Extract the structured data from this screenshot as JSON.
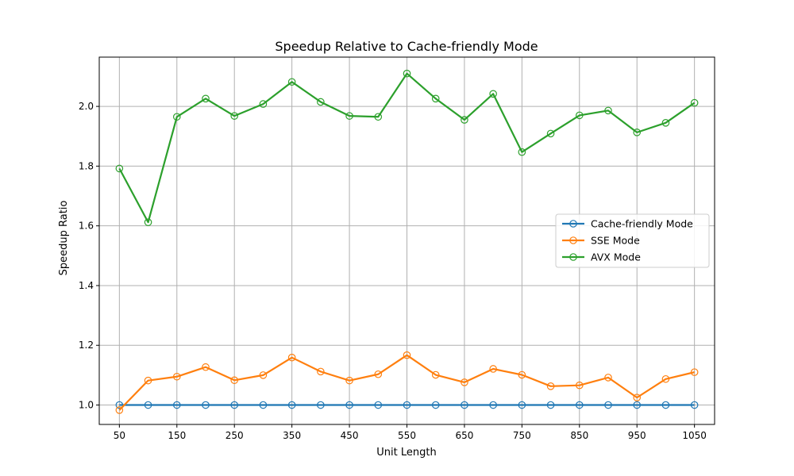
{
  "chart_data": {
    "type": "line",
    "title": "Speedup Relative to Cache-friendly Mode",
    "xlabel": "Unit Length",
    "ylabel": "Speedup Ratio",
    "x": [
      50,
      100,
      150,
      200,
      250,
      300,
      350,
      400,
      450,
      500,
      550,
      600,
      650,
      700,
      750,
      800,
      850,
      900,
      950,
      1000,
      1050
    ],
    "xticks": [
      50,
      150,
      250,
      350,
      450,
      550,
      650,
      750,
      850,
      950,
      1050
    ],
    "yticks": [
      1.0,
      1.2,
      1.4,
      1.6,
      1.8,
      2.0
    ],
    "xlim": [
      15,
      1085
    ],
    "ylim": [
      0.935,
      2.165
    ],
    "grid": true,
    "legend_position": "center-right",
    "series": [
      {
        "name": "Cache-friendly Mode",
        "color": "#1f77b4",
        "values": [
          1.0,
          1.0,
          1.0,
          1.0,
          1.0,
          1.0,
          1.0,
          1.0,
          1.0,
          1.0,
          1.0,
          1.0,
          1.0,
          1.0,
          1.0,
          1.0,
          1.0,
          1.0,
          1.0,
          1.0,
          1.0
        ]
      },
      {
        "name": "SSE Mode",
        "color": "#ff7f0e",
        "values": [
          0.983,
          1.082,
          1.095,
          1.127,
          1.083,
          1.1,
          1.159,
          1.112,
          1.082,
          1.103,
          1.167,
          1.101,
          1.076,
          1.121,
          1.101,
          1.063,
          1.066,
          1.092,
          1.025,
          1.087,
          1.11
        ]
      },
      {
        "name": "AVX Mode",
        "color": "#2ca02c",
        "values": [
          1.792,
          1.612,
          1.965,
          2.026,
          1.968,
          2.008,
          2.082,
          2.015,
          1.968,
          1.965,
          2.11,
          2.026,
          1.955,
          2.042,
          1.847,
          1.909,
          1.97,
          1.986,
          1.913,
          1.945,
          2.012
        ]
      }
    ]
  }
}
